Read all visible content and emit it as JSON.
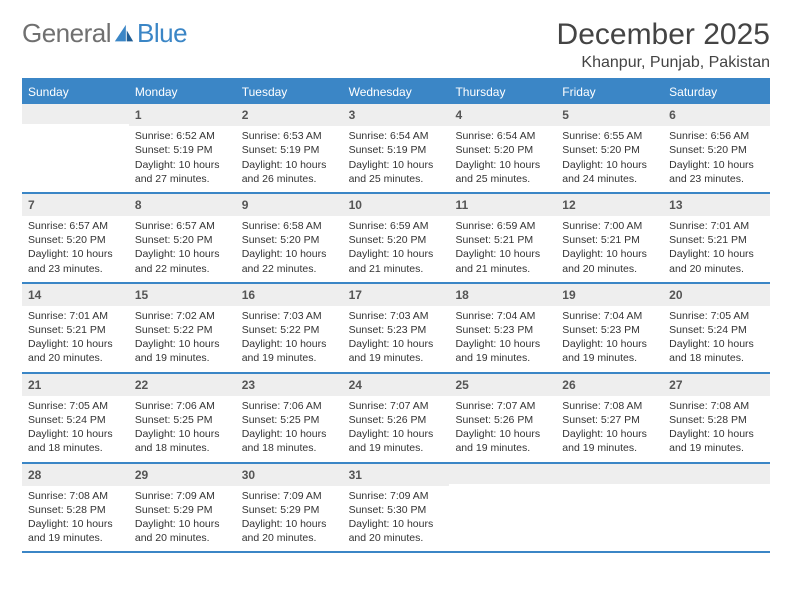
{
  "colors": {
    "brand_blue": "#3b86c6",
    "brand_gray": "#707070",
    "header_bg": "#3b86c6",
    "daynum_bg": "#eeeeee",
    "text": "#333333",
    "page_bg": "#ffffff"
  },
  "brand": {
    "part1": "General",
    "part2": "Blue"
  },
  "title": "December 2025",
  "location": "Khanpur, Punjab, Pakistan",
  "day_headers": [
    "Sunday",
    "Monday",
    "Tuesday",
    "Wednesday",
    "Thursday",
    "Friday",
    "Saturday"
  ],
  "weeks": [
    [
      {
        "blank": true
      },
      {
        "day": "1",
        "sunrise": "Sunrise: 6:52 AM",
        "sunset": "Sunset: 5:19 PM",
        "dl1": "Daylight: 10 hours",
        "dl2": "and 27 minutes."
      },
      {
        "day": "2",
        "sunrise": "Sunrise: 6:53 AM",
        "sunset": "Sunset: 5:19 PM",
        "dl1": "Daylight: 10 hours",
        "dl2": "and 26 minutes."
      },
      {
        "day": "3",
        "sunrise": "Sunrise: 6:54 AM",
        "sunset": "Sunset: 5:19 PM",
        "dl1": "Daylight: 10 hours",
        "dl2": "and 25 minutes."
      },
      {
        "day": "4",
        "sunrise": "Sunrise: 6:54 AM",
        "sunset": "Sunset: 5:20 PM",
        "dl1": "Daylight: 10 hours",
        "dl2": "and 25 minutes."
      },
      {
        "day": "5",
        "sunrise": "Sunrise: 6:55 AM",
        "sunset": "Sunset: 5:20 PM",
        "dl1": "Daylight: 10 hours",
        "dl2": "and 24 minutes."
      },
      {
        "day": "6",
        "sunrise": "Sunrise: 6:56 AM",
        "sunset": "Sunset: 5:20 PM",
        "dl1": "Daylight: 10 hours",
        "dl2": "and 23 minutes."
      }
    ],
    [
      {
        "day": "7",
        "sunrise": "Sunrise: 6:57 AM",
        "sunset": "Sunset: 5:20 PM",
        "dl1": "Daylight: 10 hours",
        "dl2": "and 23 minutes."
      },
      {
        "day": "8",
        "sunrise": "Sunrise: 6:57 AM",
        "sunset": "Sunset: 5:20 PM",
        "dl1": "Daylight: 10 hours",
        "dl2": "and 22 minutes."
      },
      {
        "day": "9",
        "sunrise": "Sunrise: 6:58 AM",
        "sunset": "Sunset: 5:20 PM",
        "dl1": "Daylight: 10 hours",
        "dl2": "and 22 minutes."
      },
      {
        "day": "10",
        "sunrise": "Sunrise: 6:59 AM",
        "sunset": "Sunset: 5:20 PM",
        "dl1": "Daylight: 10 hours",
        "dl2": "and 21 minutes."
      },
      {
        "day": "11",
        "sunrise": "Sunrise: 6:59 AM",
        "sunset": "Sunset: 5:21 PM",
        "dl1": "Daylight: 10 hours",
        "dl2": "and 21 minutes."
      },
      {
        "day": "12",
        "sunrise": "Sunrise: 7:00 AM",
        "sunset": "Sunset: 5:21 PM",
        "dl1": "Daylight: 10 hours",
        "dl2": "and 20 minutes."
      },
      {
        "day": "13",
        "sunrise": "Sunrise: 7:01 AM",
        "sunset": "Sunset: 5:21 PM",
        "dl1": "Daylight: 10 hours",
        "dl2": "and 20 minutes."
      }
    ],
    [
      {
        "day": "14",
        "sunrise": "Sunrise: 7:01 AM",
        "sunset": "Sunset: 5:21 PM",
        "dl1": "Daylight: 10 hours",
        "dl2": "and 20 minutes."
      },
      {
        "day": "15",
        "sunrise": "Sunrise: 7:02 AM",
        "sunset": "Sunset: 5:22 PM",
        "dl1": "Daylight: 10 hours",
        "dl2": "and 19 minutes."
      },
      {
        "day": "16",
        "sunrise": "Sunrise: 7:03 AM",
        "sunset": "Sunset: 5:22 PM",
        "dl1": "Daylight: 10 hours",
        "dl2": "and 19 minutes."
      },
      {
        "day": "17",
        "sunrise": "Sunrise: 7:03 AM",
        "sunset": "Sunset: 5:23 PM",
        "dl1": "Daylight: 10 hours",
        "dl2": "and 19 minutes."
      },
      {
        "day": "18",
        "sunrise": "Sunrise: 7:04 AM",
        "sunset": "Sunset: 5:23 PM",
        "dl1": "Daylight: 10 hours",
        "dl2": "and 19 minutes."
      },
      {
        "day": "19",
        "sunrise": "Sunrise: 7:04 AM",
        "sunset": "Sunset: 5:23 PM",
        "dl1": "Daylight: 10 hours",
        "dl2": "and 19 minutes."
      },
      {
        "day": "20",
        "sunrise": "Sunrise: 7:05 AM",
        "sunset": "Sunset: 5:24 PM",
        "dl1": "Daylight: 10 hours",
        "dl2": "and 18 minutes."
      }
    ],
    [
      {
        "day": "21",
        "sunrise": "Sunrise: 7:05 AM",
        "sunset": "Sunset: 5:24 PM",
        "dl1": "Daylight: 10 hours",
        "dl2": "and 18 minutes."
      },
      {
        "day": "22",
        "sunrise": "Sunrise: 7:06 AM",
        "sunset": "Sunset: 5:25 PM",
        "dl1": "Daylight: 10 hours",
        "dl2": "and 18 minutes."
      },
      {
        "day": "23",
        "sunrise": "Sunrise: 7:06 AM",
        "sunset": "Sunset: 5:25 PM",
        "dl1": "Daylight: 10 hours",
        "dl2": "and 18 minutes."
      },
      {
        "day": "24",
        "sunrise": "Sunrise: 7:07 AM",
        "sunset": "Sunset: 5:26 PM",
        "dl1": "Daylight: 10 hours",
        "dl2": "and 19 minutes."
      },
      {
        "day": "25",
        "sunrise": "Sunrise: 7:07 AM",
        "sunset": "Sunset: 5:26 PM",
        "dl1": "Daylight: 10 hours",
        "dl2": "and 19 minutes."
      },
      {
        "day": "26",
        "sunrise": "Sunrise: 7:08 AM",
        "sunset": "Sunset: 5:27 PM",
        "dl1": "Daylight: 10 hours",
        "dl2": "and 19 minutes."
      },
      {
        "day": "27",
        "sunrise": "Sunrise: 7:08 AM",
        "sunset": "Sunset: 5:28 PM",
        "dl1": "Daylight: 10 hours",
        "dl2": "and 19 minutes."
      }
    ],
    [
      {
        "day": "28",
        "sunrise": "Sunrise: 7:08 AM",
        "sunset": "Sunset: 5:28 PM",
        "dl1": "Daylight: 10 hours",
        "dl2": "and 19 minutes."
      },
      {
        "day": "29",
        "sunrise": "Sunrise: 7:09 AM",
        "sunset": "Sunset: 5:29 PM",
        "dl1": "Daylight: 10 hours",
        "dl2": "and 20 minutes."
      },
      {
        "day": "30",
        "sunrise": "Sunrise: 7:09 AM",
        "sunset": "Sunset: 5:29 PM",
        "dl1": "Daylight: 10 hours",
        "dl2": "and 20 minutes."
      },
      {
        "day": "31",
        "sunrise": "Sunrise: 7:09 AM",
        "sunset": "Sunset: 5:30 PM",
        "dl1": "Daylight: 10 hours",
        "dl2": "and 20 minutes."
      },
      {
        "blank": true
      },
      {
        "blank": true
      },
      {
        "blank": true
      }
    ]
  ]
}
